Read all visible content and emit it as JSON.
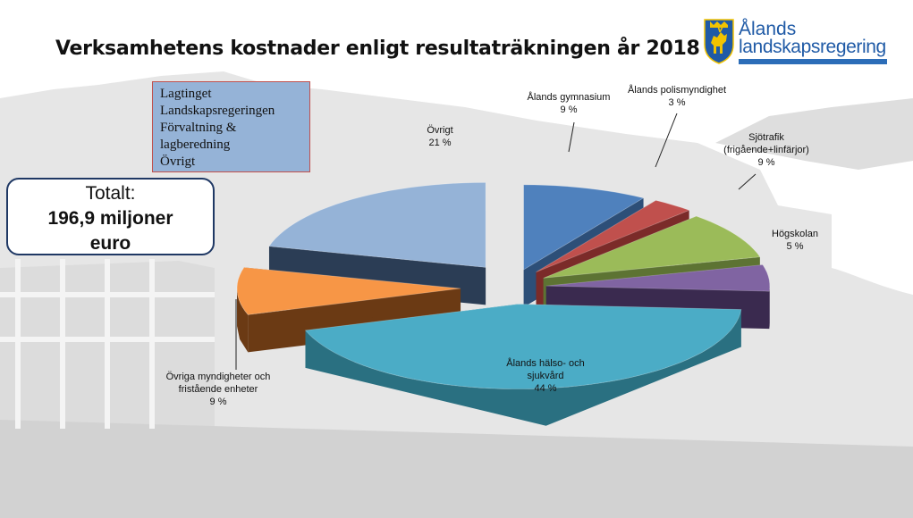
{
  "title": "Verksamhetens kostnader enligt resultaträkningen år 2018",
  "logo": {
    "line1": "Ålands",
    "line2": "landskapsregering",
    "colors": {
      "text": "#1f5aa6",
      "shield": "#1f5aa6",
      "deer": "#f2c300"
    }
  },
  "category_box": {
    "lines": [
      "Lagtinget",
      "Landskapsregeringen",
      "Förvaltning &",
      "lagberedning",
      "Övrigt"
    ]
  },
  "total_box": {
    "line1": "Totalt:",
    "line2": "196,9 miljoner",
    "line3": "euro"
  },
  "chart_data": {
    "type": "pie",
    "title": "Verksamhetens kostnader enligt resultaträkningen år 2018",
    "slices": [
      {
        "label_lines": [
          "Ålands gymnasium",
          "9 %"
        ],
        "value": 9,
        "color": "#4f81bd",
        "dark": "#2d4f78"
      },
      {
        "label_lines": [
          "Ålands polismyndighet",
          "3 %"
        ],
        "value": 3,
        "color": "#c0504d",
        "dark": "#7b2b29"
      },
      {
        "label_lines": [
          "Sjötrafik",
          "(frigående+linfärjor)",
          "9 %"
        ],
        "value": 9,
        "color": "#9bbb59",
        "dark": "#5d7333"
      },
      {
        "label_lines": [
          "Högskolan",
          "5 %"
        ],
        "value": 5,
        "color": "#8064a2",
        "dark": "#3a2a4f"
      },
      {
        "label_lines": [
          "Ålands hälso- och",
          "sjukvård",
          "44 %"
        ],
        "value": 44,
        "color": "#4bacc6",
        "dark": "#2a7081"
      },
      {
        "label_lines": [
          "Övriga myndigheter och",
          "fristående enheter",
          "9 %"
        ],
        "value": 9,
        "color": "#f79646",
        "dark": "#6b3a14"
      },
      {
        "label_lines": [
          "Övrigt",
          "21 %"
        ],
        "value": 21,
        "color": "#95b3d7",
        "dark": "#2b3d55"
      }
    ]
  }
}
